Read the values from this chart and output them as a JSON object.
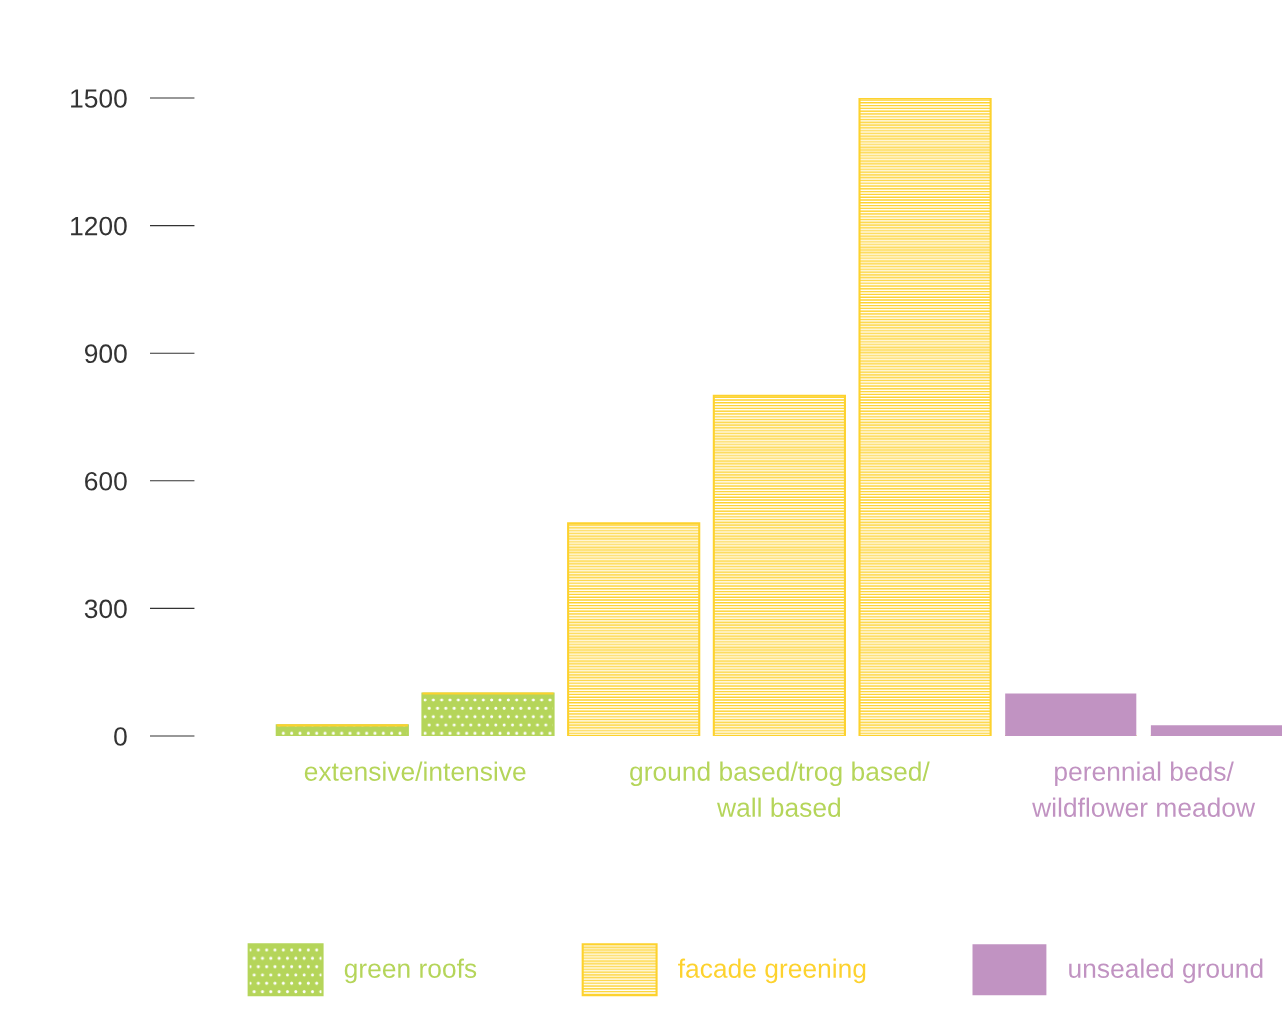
{
  "chart_data": {
    "type": "bar",
    "stacked": true,
    "categories": [
      null,
      null,
      null,
      null,
      null,
      null,
      null
    ],
    "series": [
      {
        "name": "green roofs",
        "color": "#b5d55a",
        "values": [
          25,
          100,
          0,
          0,
          0,
          0,
          0
        ]
      },
      {
        "name": "facade greening",
        "color": "#fdd22e",
        "values": [
          0,
          0,
          500,
          800,
          1500,
          0,
          0
        ]
      },
      {
        "name": "unsealed ground",
        "color": "#c193c2",
        "values": [
          0,
          0,
          0,
          0,
          0,
          100,
          25
        ]
      }
    ],
    "annotations": [
      "extensive/intensive",
      "ground based/trog based/\nwall based",
      "perennial beds/\nwildflower meadow"
    ],
    "ylim": [
      0,
      1500
    ],
    "yticks": [
      0,
      300,
      600,
      900,
      1200,
      1500
    ],
    "grid": false,
    "legend": "bottom",
    "tick_labels": "y"
  }
}
